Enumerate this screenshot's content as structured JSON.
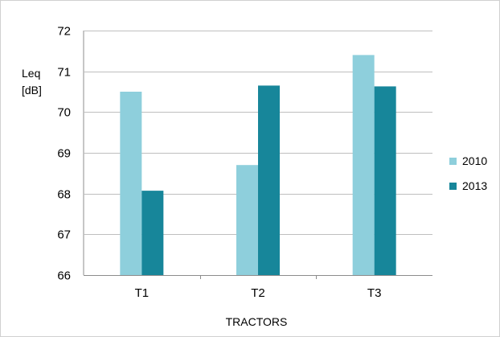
{
  "chart_data": {
    "type": "bar",
    "categories": [
      "T1",
      "T2",
      "T3"
    ],
    "series": [
      {
        "name": "2010",
        "values": [
          70.5,
          68.7,
          71.4
        ],
        "color": "#8ecfdc"
      },
      {
        "name": "2013",
        "values": [
          68.07,
          70.65,
          70.63
        ],
        "color": "#17869a"
      }
    ],
    "ylabel_lines": [
      "Leq",
      "[dB]"
    ],
    "xlabel": "TRACTORS",
    "ylim": [
      66,
      72
    ],
    "yticks": [
      "66",
      "67",
      "68",
      "69",
      "70",
      "71",
      "72"
    ],
    "grid": true,
    "legend_position": "right",
    "colors": {
      "gridline": "#bfbfbf",
      "axis": "#8c8c8c"
    }
  }
}
